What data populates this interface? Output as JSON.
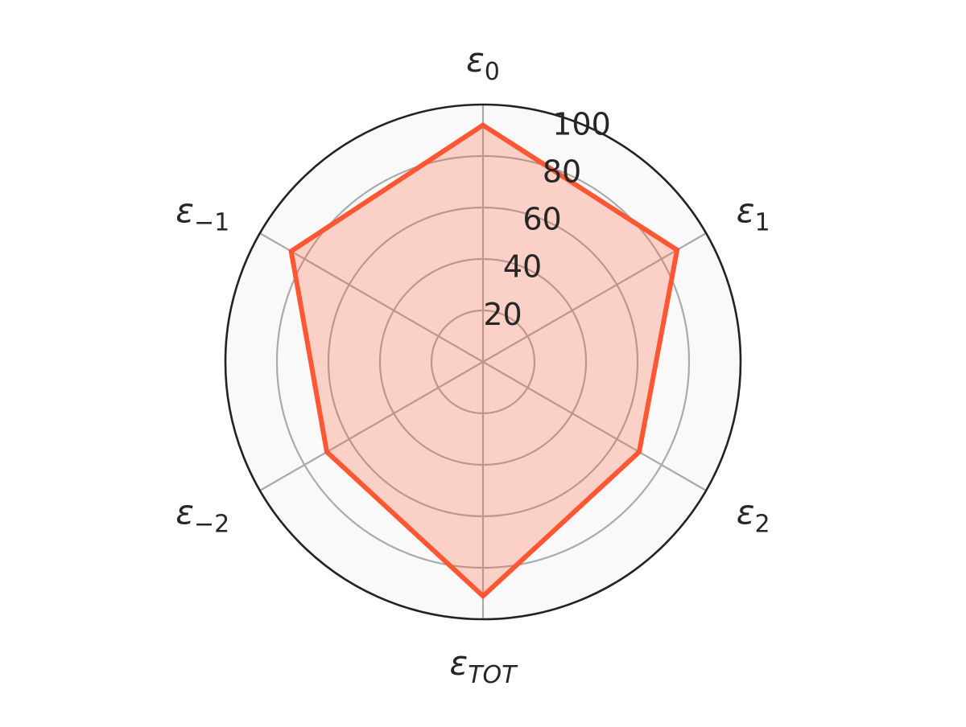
{
  "chart_data": {
    "type": "radar",
    "categories": [
      {
        "symbol": "ε",
        "sub": "0",
        "sub_italic": false
      },
      {
        "symbol": "ε",
        "sub": "1",
        "sub_italic": false
      },
      {
        "symbol": "ε",
        "sub": "2",
        "sub_italic": false
      },
      {
        "symbol": "ε",
        "sub": "TOT",
        "sub_italic": true
      },
      {
        "symbol": "ε",
        "sub": "−2",
        "sub_italic": false
      },
      {
        "symbol": "ε",
        "sub": "−1",
        "sub_italic": false
      }
    ],
    "series": [
      {
        "values": [
          92,
          87,
          70,
          91,
          70,
          86
        ],
        "line_color": "#ff5733",
        "fill_color": "#ff5733",
        "fill_opacity": 0.25
      }
    ],
    "rlim": [
      0,
      100
    ],
    "radial_ticks": [
      "20",
      "40",
      "60",
      "80",
      "100"
    ],
    "radial_tick_values": [
      20,
      40,
      60,
      80,
      100
    ],
    "grid": true,
    "background_color": "#f9f9f9",
    "grid_color": "#aaaaaa",
    "frame_color": "#222222"
  }
}
